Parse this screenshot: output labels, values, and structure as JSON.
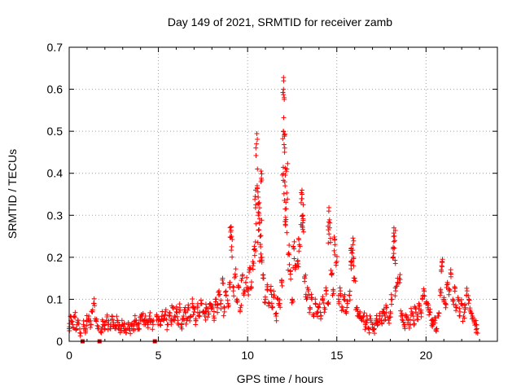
{
  "chart_data": {
    "type": "scatter",
    "title": "Day 149 of 2021, SRMTID for receiver zamb",
    "xlabel": "GPS time / hours",
    "ylabel": "SRMTID / TECUs",
    "xlim": [
      0,
      24
    ],
    "ylim": [
      0,
      0.7
    ],
    "xticks": [
      0,
      5,
      10,
      15,
      20
    ],
    "yticks": [
      0,
      0.1,
      0.2,
      0.3,
      0.4,
      0.5,
      0.6,
      0.7
    ],
    "xtick_labels": [
      "0",
      "5",
      "10",
      "15",
      "20"
    ],
    "ytick_labels": [
      "0",
      "0.1",
      "0.2",
      "0.3",
      "0.4",
      "0.5",
      "0.6",
      "0.7"
    ],
    "grid": true,
    "marker": "+",
    "color": "#ff0000",
    "gap_marker_color": "#cc0000",
    "gaps_hours": [
      0.75,
      1.7,
      4.8
    ],
    "series": [
      {
        "name": "SRMTID",
        "points": [
          [
            0.0,
            0.03
          ],
          [
            0.1,
            0.05
          ],
          [
            0.2,
            0.04
          ],
          [
            0.3,
            0.06
          ],
          [
            0.4,
            0.03
          ],
          [
            0.5,
            0.05
          ],
          [
            0.6,
            0.02
          ],
          [
            0.8,
            0.04
          ],
          [
            0.9,
            0.03
          ],
          [
            1.0,
            0.05
          ],
          [
            1.1,
            0.06
          ],
          [
            1.2,
            0.04
          ],
          [
            1.3,
            0.07
          ],
          [
            1.4,
            0.09
          ],
          [
            1.5,
            0.05
          ],
          [
            1.6,
            0.03
          ],
          [
            1.8,
            0.02
          ],
          [
            1.9,
            0.04
          ],
          [
            2.0,
            0.03
          ],
          [
            2.1,
            0.05
          ],
          [
            2.2,
            0.04
          ],
          [
            2.3,
            0.03
          ],
          [
            2.4,
            0.06
          ],
          [
            2.5,
            0.04
          ],
          [
            2.6,
            0.03
          ],
          [
            2.7,
            0.05
          ],
          [
            2.8,
            0.04
          ],
          [
            2.9,
            0.03
          ],
          [
            3.0,
            0.04
          ],
          [
            3.1,
            0.03
          ],
          [
            3.2,
            0.02
          ],
          [
            3.3,
            0.04
          ],
          [
            3.4,
            0.03
          ],
          [
            3.5,
            0.04
          ],
          [
            3.6,
            0.03
          ],
          [
            3.7,
            0.05
          ],
          [
            3.8,
            0.04
          ],
          [
            3.9,
            0.03
          ],
          [
            4.0,
            0.05
          ],
          [
            4.1,
            0.06
          ],
          [
            4.2,
            0.04
          ],
          [
            4.3,
            0.05
          ],
          [
            4.4,
            0.04
          ],
          [
            4.5,
            0.06
          ],
          [
            4.6,
            0.05
          ],
          [
            4.7,
            0.04
          ],
          [
            4.9,
            0.06
          ],
          [
            5.0,
            0.05
          ],
          [
            5.1,
            0.04
          ],
          [
            5.2,
            0.06
          ],
          [
            5.3,
            0.05
          ],
          [
            5.4,
            0.07
          ],
          [
            5.5,
            0.04
          ],
          [
            5.6,
            0.06
          ],
          [
            5.7,
            0.05
          ],
          [
            5.8,
            0.08
          ],
          [
            5.9,
            0.06
          ],
          [
            6.0,
            0.07
          ],
          [
            6.1,
            0.05
          ],
          [
            6.2,
            0.08
          ],
          [
            6.3,
            0.04
          ],
          [
            6.4,
            0.06
          ],
          [
            6.5,
            0.07
          ],
          [
            6.6,
            0.05
          ],
          [
            6.7,
            0.08
          ],
          [
            6.8,
            0.06
          ],
          [
            6.9,
            0.09
          ],
          [
            7.0,
            0.07
          ],
          [
            7.1,
            0.05
          ],
          [
            7.2,
            0.08
          ],
          [
            7.3,
            0.06
          ],
          [
            7.4,
            0.09
          ],
          [
            7.5,
            0.07
          ],
          [
            7.6,
            0.06
          ],
          [
            7.7,
            0.08
          ],
          [
            7.8,
            0.07
          ],
          [
            7.9,
            0.09
          ],
          [
            8.0,
            0.08
          ],
          [
            8.1,
            0.06
          ],
          [
            8.2,
            0.1
          ],
          [
            8.3,
            0.08
          ],
          [
            8.4,
            0.12
          ],
          [
            8.5,
            0.09
          ],
          [
            8.6,
            0.15
          ],
          [
            8.7,
            0.07
          ],
          [
            8.8,
            0.11
          ],
          [
            8.9,
            0.09
          ],
          [
            9.0,
            0.14
          ],
          [
            9.05,
            0.26
          ],
          [
            9.1,
            0.25
          ],
          [
            9.2,
            0.12
          ],
          [
            9.3,
            0.16
          ],
          [
            9.4,
            0.1
          ],
          [
            9.5,
            0.13
          ],
          [
            9.6,
            0.08
          ],
          [
            9.7,
            0.15
          ],
          [
            9.8,
            0.11
          ],
          [
            9.9,
            0.14
          ],
          [
            10.0,
            0.12
          ],
          [
            10.1,
            0.17
          ],
          [
            10.2,
            0.13
          ],
          [
            10.3,
            0.18
          ],
          [
            10.4,
            0.22
          ],
          [
            10.45,
            0.36
          ],
          [
            10.5,
            0.47
          ],
          [
            10.55,
            0.41
          ],
          [
            10.6,
            0.3
          ],
          [
            10.65,
            0.33
          ],
          [
            10.7,
            0.25
          ],
          [
            10.75,
            0.38
          ],
          [
            10.8,
            0.2
          ],
          [
            10.9,
            0.15
          ],
          [
            11.0,
            0.1
          ],
          [
            11.1,
            0.13
          ],
          [
            11.2,
            0.09
          ],
          [
            11.3,
            0.12
          ],
          [
            11.4,
            0.08
          ],
          [
            11.5,
            0.11
          ],
          [
            11.6,
            0.06
          ],
          [
            11.7,
            0.1
          ],
          [
            11.8,
            0.09
          ],
          [
            11.9,
            0.14
          ],
          [
            12.0,
            0.5
          ],
          [
            12.02,
            0.62
          ],
          [
            12.05,
            0.58
          ],
          [
            12.08,
            0.46
          ],
          [
            12.1,
            0.37
          ],
          [
            12.15,
            0.29
          ],
          [
            12.2,
            0.41
          ],
          [
            12.3,
            0.21
          ],
          [
            12.4,
            0.16
          ],
          [
            12.5,
            0.1
          ],
          [
            12.6,
            0.22
          ],
          [
            12.7,
            0.18
          ],
          [
            12.8,
            0.19
          ],
          [
            12.9,
            0.23
          ],
          [
            13.0,
            0.33
          ],
          [
            13.05,
            0.35
          ],
          [
            13.1,
            0.3
          ],
          [
            13.2,
            0.15
          ],
          [
            13.3,
            0.1
          ],
          [
            13.4,
            0.12
          ],
          [
            13.5,
            0.08
          ],
          [
            13.6,
            0.1
          ],
          [
            13.7,
            0.06
          ],
          [
            13.8,
            0.09
          ],
          [
            13.9,
            0.07
          ],
          [
            14.0,
            0.08
          ],
          [
            14.1,
            0.06
          ],
          [
            14.2,
            0.1
          ],
          [
            14.3,
            0.08
          ],
          [
            14.4,
            0.12
          ],
          [
            14.5,
            0.09
          ],
          [
            14.55,
            0.31
          ],
          [
            14.6,
            0.27
          ],
          [
            14.7,
            0.16
          ],
          [
            14.8,
            0.12
          ],
          [
            14.9,
            0.23
          ],
          [
            15.0,
            0.19
          ],
          [
            15.1,
            0.1
          ],
          [
            15.2,
            0.12
          ],
          [
            15.3,
            0.08
          ],
          [
            15.4,
            0.1
          ],
          [
            15.5,
            0.07
          ],
          [
            15.6,
            0.09
          ],
          [
            15.7,
            0.11
          ],
          [
            15.8,
            0.22
          ],
          [
            15.85,
            0.21
          ],
          [
            15.9,
            0.23
          ],
          [
            16.0,
            0.15
          ],
          [
            16.1,
            0.08
          ],
          [
            16.2,
            0.06
          ],
          [
            16.3,
            0.07
          ],
          [
            16.4,
            0.05
          ],
          [
            16.5,
            0.06
          ],
          [
            16.6,
            0.04
          ],
          [
            16.7,
            0.05
          ],
          [
            16.8,
            0.03
          ],
          [
            16.9,
            0.05
          ],
          [
            17.0,
            0.04
          ],
          [
            17.1,
            0.03
          ],
          [
            17.2,
            0.05
          ],
          [
            17.3,
            0.04
          ],
          [
            17.4,
            0.06
          ],
          [
            17.5,
            0.05
          ],
          [
            17.6,
            0.07
          ],
          [
            17.7,
            0.06
          ],
          [
            17.8,
            0.08
          ],
          [
            17.9,
            0.05
          ],
          [
            18.0,
            0.07
          ],
          [
            18.1,
            0.1
          ],
          [
            18.15,
            0.2
          ],
          [
            18.2,
            0.27
          ],
          [
            18.25,
            0.24
          ],
          [
            18.3,
            0.12
          ],
          [
            18.4,
            0.14
          ],
          [
            18.5,
            0.15
          ],
          [
            18.6,
            0.06
          ],
          [
            18.7,
            0.05
          ],
          [
            18.8,
            0.04
          ],
          [
            18.9,
            0.06
          ],
          [
            19.0,
            0.05
          ],
          [
            19.1,
            0.04
          ],
          [
            19.2,
            0.07
          ],
          [
            19.3,
            0.05
          ],
          [
            19.4,
            0.08
          ],
          [
            19.5,
            0.06
          ],
          [
            19.6,
            0.09
          ],
          [
            19.7,
            0.07
          ],
          [
            19.8,
            0.1
          ],
          [
            19.9,
            0.12
          ],
          [
            20.0,
            0.09
          ],
          [
            20.1,
            0.08
          ],
          [
            20.2,
            0.07
          ],
          [
            20.3,
            0.05
          ],
          [
            20.4,
            0.04
          ],
          [
            20.5,
            0.05
          ],
          [
            20.6,
            0.03
          ],
          [
            20.7,
            0.06
          ],
          [
            20.8,
            0.12
          ],
          [
            20.85,
            0.17
          ],
          [
            20.9,
            0.19
          ],
          [
            21.0,
            0.1
          ],
          [
            21.1,
            0.08
          ],
          [
            21.2,
            0.14
          ],
          [
            21.3,
            0.12
          ],
          [
            21.4,
            0.16
          ],
          [
            21.5,
            0.1
          ],
          [
            21.6,
            0.13
          ],
          [
            21.7,
            0.08
          ],
          [
            21.8,
            0.1
          ],
          [
            21.9,
            0.07
          ],
          [
            22.0,
            0.09
          ],
          [
            22.1,
            0.06
          ],
          [
            22.2,
            0.08
          ],
          [
            22.3,
            0.12
          ],
          [
            22.4,
            0.1
          ],
          [
            22.5,
            0.07
          ],
          [
            22.6,
            0.06
          ],
          [
            22.7,
            0.05
          ],
          [
            22.8,
            0.04
          ],
          [
            22.85,
            0.03
          ]
        ]
      }
    ]
  }
}
